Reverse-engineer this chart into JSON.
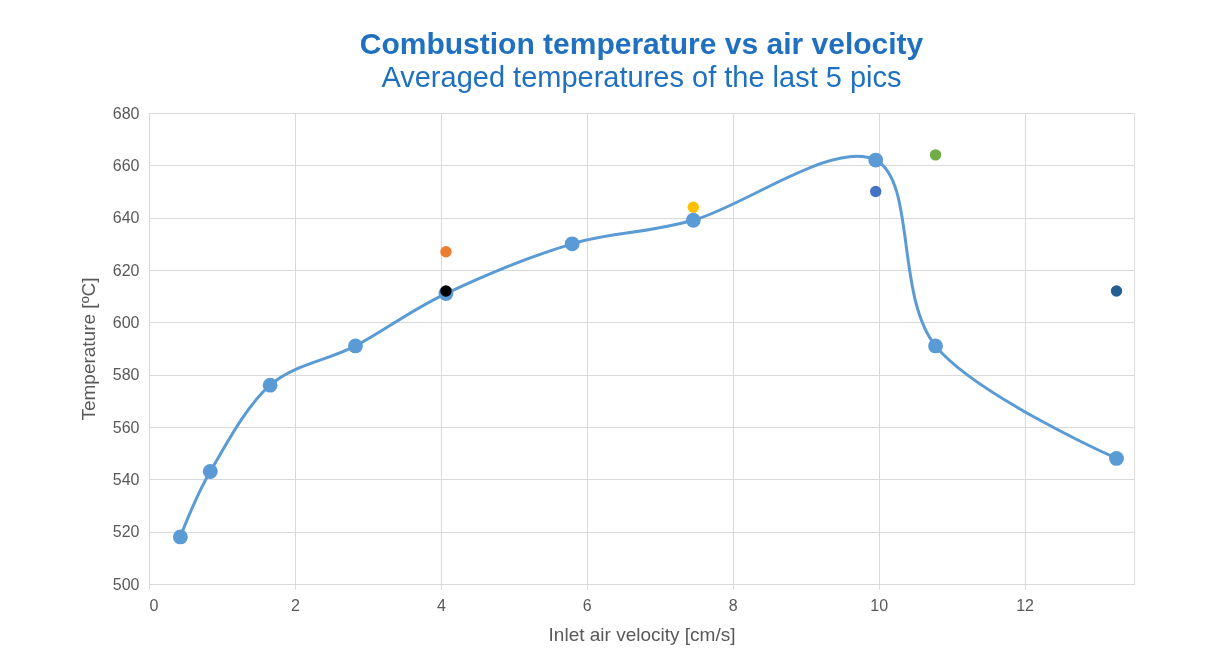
{
  "chart_data": {
    "type": "line",
    "title": "Combustion temperature vs air velocity",
    "subtitle": "Averaged temperatures of the last 5 pics",
    "xlabel": "Inlet air velocity [cm/s]",
    "ylabel": "Temperature [ºC]",
    "series": [
      {
        "color": "#5b9bd5",
        "marker": "circle",
        "line_style": "solid",
        "x": [
          0.43,
          0.84,
          1.66,
          2.83,
          4.07,
          5.8,
          7.46,
          9.96,
          10.78,
          13.26
        ],
        "values": [
          518,
          543,
          576,
          591,
          611,
          630,
          639,
          662,
          591,
          548
        ]
      },
      {
        "type": "scatter",
        "color": "#ed7d31",
        "x": [
          4.07
        ],
        "values": [
          627
        ]
      },
      {
        "type": "scatter",
        "color": "#000000",
        "x": [
          4.07
        ],
        "values": [
          612
        ]
      },
      {
        "type": "scatter",
        "color": "#ffc000",
        "x": [
          7.46
        ],
        "values": [
          644
        ]
      },
      {
        "type": "scatter",
        "color": "#4472c4",
        "x": [
          9.96
        ],
        "values": [
          650
        ]
      },
      {
        "type": "scatter",
        "color": "#70ad47",
        "x": [
          10.78
        ],
        "values": [
          664
        ]
      },
      {
        "type": "scatter",
        "color": "#255e91",
        "x": [
          13.26
        ],
        "values": [
          612
        ]
      }
    ],
    "xlim": [
      0,
      13.5
    ],
    "xticks": [
      0,
      2,
      4,
      6,
      8,
      10,
      12
    ],
    "ylim": [
      500,
      680
    ],
    "yticks": [
      500,
      520,
      540,
      560,
      580,
      600,
      620,
      640,
      660,
      680
    ],
    "grid": true
  }
}
